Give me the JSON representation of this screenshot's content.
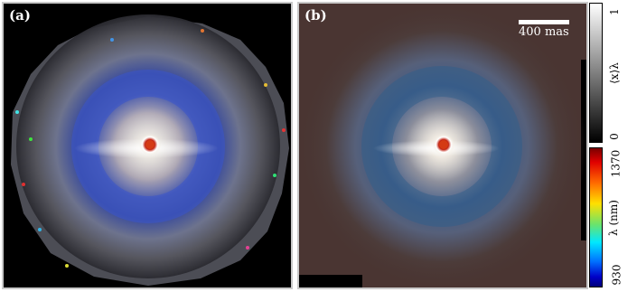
{
  "panels": [
    {
      "label": "(a)"
    },
    {
      "label": "(b)"
    }
  ],
  "scalebar": {
    "text": "400 mas"
  },
  "colorbar_top": {
    "label": "⟨x⟩λ",
    "max_tick": "1",
    "min_tick": "0"
  },
  "colorbar_bottom": {
    "label": "λ (nm)",
    "max_tick": "1370",
    "min_tick": "930"
  }
}
